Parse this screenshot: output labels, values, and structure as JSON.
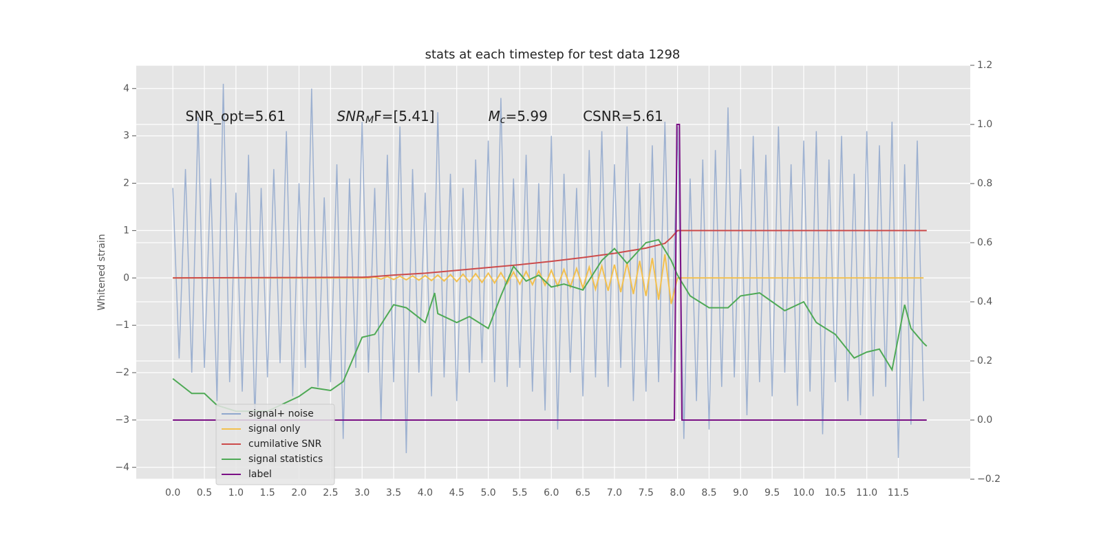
{
  "chart_data": {
    "type": "line",
    "title": "stats at each timestep for test data 1298",
    "ylabel": "Whitened strain",
    "grid": true,
    "legend": "lower left",
    "xlim": [
      -0.58,
      12.64
    ],
    "ylim": [
      -4.25,
      4.49
    ],
    "y2lim": [
      -0.2,
      1.2
    ],
    "xticks": [
      {
        "value": 0,
        "label": "0.0"
      },
      0.5,
      {
        "value": 1,
        "label": "1.0"
      },
      1.5,
      {
        "value": 2,
        "label": "2.0"
      },
      2.5,
      {
        "value": 3,
        "label": "3.0"
      },
      3.5,
      {
        "value": 4,
        "label": "4.0"
      },
      4.5,
      {
        "value": 5,
        "label": "5.0"
      },
      5.5,
      {
        "value": 6,
        "label": "6.0"
      },
      6.5,
      {
        "value": 7,
        "label": "7.0"
      },
      7.5,
      {
        "value": 8,
        "label": "8.0"
      },
      8.5,
      {
        "value": 9,
        "label": "9.0"
      },
      9.5,
      {
        "value": 10,
        "label": "10.0"
      },
      10.5,
      {
        "value": 11,
        "label": "11.0"
      },
      11.5
    ],
    "yticks": [
      {
        "value": -4,
        "label": "−4"
      },
      {
        "value": -3,
        "label": "−3"
      },
      {
        "value": -2,
        "label": "−2"
      },
      {
        "value": -1,
        "label": "−1"
      },
      0,
      1,
      2,
      3,
      4
    ],
    "y2ticks": [
      {
        "value": -0.2,
        "label": "−0.2"
      },
      {
        "value": 0,
        "label": "0.0"
      },
      0.2,
      0.4,
      0.6,
      0.8,
      {
        "value": 1,
        "label": "1.0"
      },
      1.2
    ],
    "annotations": [
      {
        "text": "SNR_opt=5.61",
        "x": 0.2,
        "y": 3.4
      },
      {
        "text": "SNR",
        "sub": "M",
        "after": "F=[5.41]",
        "x": 2.6,
        "y": 3.4
      },
      {
        "text": "M",
        "sub": "c",
        "after": "=5.99",
        "x": 5.0,
        "y": 3.4
      },
      {
        "text": "CSNR=5.61",
        "x": 6.5,
        "y": 3.4
      }
    ],
    "x": [
      0,
      0.1,
      0.2,
      0.3,
      0.4,
      0.5,
      0.6,
      0.7,
      0.8,
      0.9,
      1,
      1.1,
      1.2,
      1.3,
      1.4,
      1.5,
      1.6,
      1.7,
      1.8,
      1.9,
      2,
      2.1,
      2.2,
      2.3,
      2.4,
      2.5,
      2.6,
      2.7,
      2.8,
      2.9,
      3,
      3.1,
      3.2,
      3.3,
      3.4,
      3.5,
      3.6,
      3.7,
      3.8,
      3.9,
      4,
      4.1,
      4.2,
      4.3,
      4.4,
      4.5,
      4.6,
      4.7,
      4.8,
      4.9,
      5,
      5.1,
      5.2,
      5.3,
      5.4,
      5.5,
      5.6,
      5.7,
      5.8,
      5.9,
      6,
      6.1,
      6.2,
      6.3,
      6.4,
      6.5,
      6.6,
      6.7,
      6.8,
      6.9,
      7,
      7.1,
      7.2,
      7.3,
      7.4,
      7.5,
      7.6,
      7.7,
      7.8,
      7.9,
      8,
      8.1,
      8.2,
      8.3,
      8.4,
      8.5,
      8.6,
      8.7,
      8.8,
      8.9,
      9,
      9.1,
      9.2,
      9.3,
      9.4,
      9.5,
      9.6,
      9.7,
      9.8,
      9.9,
      10,
      10.1,
      10.2,
      10.3,
      10.4,
      10.5,
      10.6,
      10.7,
      10.8,
      10.9,
      11,
      11.1,
      11.2,
      11.3,
      11.4,
      11.5,
      11.6,
      11.7,
      11.8,
      11.9
    ],
    "series": [
      {
        "name": "signal+ noise",
        "color": "#8fa7cd",
        "values": [
          1.9,
          -1.7,
          2.3,
          -2.0,
          3.4,
          -1.9,
          2.1,
          -2.6,
          4.1,
          -2.2,
          1.8,
          -2.4,
          2.6,
          -3.0,
          1.9,
          -2.1,
          2.3,
          -1.8,
          3.1,
          -2.5,
          2.0,
          -1.9,
          4.0,
          -2.3,
          1.7,
          -2.2,
          2.4,
          -3.4,
          2.1,
          -1.9,
          3.3,
          -2.0,
          1.9,
          -3.0,
          2.6,
          -2.2,
          3.2,
          -3.7,
          2.3,
          -2.0,
          1.8,
          -2.5,
          3.5,
          -2.1,
          2.2,
          -2.6,
          1.9,
          -2.0,
          2.5,
          -1.8,
          2.9,
          -2.2,
          3.8,
          -2.3,
          2.1,
          -1.9,
          2.6,
          -2.4,
          2.0,
          -2.8,
          3.0,
          -3.2,
          2.2,
          -2.0,
          1.9,
          -2.5,
          2.7,
          -2.1,
          3.1,
          -2.3,
          2.4,
          -1.9,
          3.2,
          -2.6,
          2.0,
          -2.4,
          2.8,
          -2.2,
          3.3,
          -2.0,
          3.2,
          -3.4,
          2.1,
          -2.6,
          2.5,
          -3.2,
          2.7,
          -2.3,
          3.6,
          -2.1,
          2.3,
          -2.9,
          3.0,
          -2.2,
          2.6,
          -2.5,
          3.2,
          -2.0,
          2.4,
          -2.7,
          2.9,
          -2.4,
          3.1,
          -3.3,
          2.5,
          -2.2,
          3.0,
          -2.6,
          2.2,
          -2.9,
          3.1,
          -2.5,
          2.8,
          -2.3,
          3.3,
          -3.8,
          2.4,
          -3.1,
          2.9,
          -2.6
        ]
      },
      {
        "name": "signal only",
        "color": "#f3c04e",
        "values": [
          0,
          0,
          0,
          0,
          0,
          0,
          0,
          0,
          0,
          0,
          0,
          0,
          0,
          0,
          0,
          0,
          0,
          0,
          0,
          0,
          0,
          0,
          0,
          0,
          0,
          0,
          0,
          0,
          0,
          0,
          0,
          0,
          0.02,
          -0.024,
          0.028,
          -0.032,
          0.036,
          -0.04,
          0.043,
          -0.047,
          0.05,
          -0.055,
          0.06,
          -0.065,
          0.07,
          -0.075,
          0.08,
          -0.085,
          0.09,
          -0.095,
          0.1,
          -0.106,
          0.112,
          -0.118,
          0.124,
          -0.13,
          0.136,
          -0.142,
          0.148,
          -0.154,
          0.16,
          -0.17,
          0.18,
          -0.19,
          0.2,
          -0.21,
          0.23,
          -0.24,
          0.25,
          -0.27,
          0.28,
          -0.3,
          0.32,
          -0.34,
          0.36,
          -0.38,
          0.42,
          -0.46,
          0.5,
          -0.55,
          0,
          0,
          0,
          0,
          0,
          0,
          0,
          0,
          0,
          0,
          0,
          0,
          0,
          0,
          0,
          0,
          0,
          0,
          0,
          0,
          0,
          0,
          0,
          0,
          0,
          0,
          0,
          0,
          0,
          0,
          0,
          0,
          0,
          0,
          0,
          0,
          0,
          0,
          0,
          0
        ]
      },
      {
        "name": "cumilative SNR",
        "color": "#cc4a4a",
        "x": [
          0,
          1,
          2,
          3,
          3.1,
          3.5,
          4,
          4.5,
          5,
          5.5,
          6,
          6.5,
          7,
          7.5,
          7.8,
          7.9,
          8.0,
          11.95
        ],
        "values": [
          0,
          0.005,
          0.01,
          0.015,
          0.02,
          0.06,
          0.1,
          0.16,
          0.22,
          0.28,
          0.35,
          0.43,
          0.52,
          0.63,
          0.73,
          0.85,
          1,
          1
        ]
      },
      {
        "name": "signal statistics",
        "color": "#4ea955",
        "axis": "y2",
        "x": [
          0,
          0.3,
          0.5,
          0.7,
          1.0,
          1.5,
          2.0,
          2.2,
          2.5,
          2.7,
          3.0,
          3.2,
          3.5,
          3.7,
          4.0,
          4.15,
          4.2,
          4.5,
          4.7,
          5.0,
          5.2,
          5.4,
          5.6,
          5.8,
          6.0,
          6.2,
          6.5,
          6.8,
          7.0,
          7.2,
          7.5,
          7.7,
          7.9,
          8.0,
          8.2,
          8.5,
          8.8,
          9.0,
          9.3,
          9.5,
          9.7,
          10.0,
          10.2,
          10.5,
          10.8,
          11.0,
          11.2,
          11.4,
          11.6,
          11.7,
          11.9,
          11.95
        ],
        "values": [
          0.14,
          0.09,
          0.09,
          0.05,
          0.03,
          0.03,
          0.08,
          0.11,
          0.1,
          0.13,
          0.28,
          0.29,
          0.39,
          0.38,
          0.33,
          0.43,
          0.36,
          0.33,
          0.35,
          0.31,
          0.42,
          0.52,
          0.47,
          0.49,
          0.45,
          0.46,
          0.44,
          0.54,
          0.58,
          0.53,
          0.6,
          0.61,
          0.54,
          0.49,
          0.42,
          0.38,
          0.38,
          0.42,
          0.43,
          0.4,
          0.37,
          0.4,
          0.33,
          0.29,
          0.21,
          0.23,
          0.24,
          0.17,
          0.39,
          0.31,
          0.26,
          0.25
        ]
      },
      {
        "name": "label",
        "color": "#7a0f84",
        "axis": "y2",
        "x": [
          0,
          7.95,
          7.99,
          8.03,
          8.07,
          11.95
        ],
        "values": [
          0,
          0,
          1,
          1,
          0,
          0
        ]
      }
    ]
  }
}
